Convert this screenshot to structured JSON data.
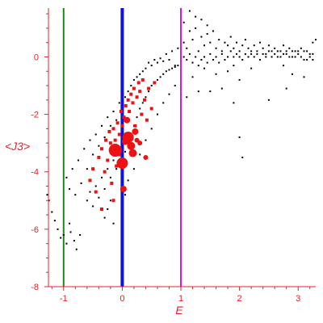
{
  "chart_data": {
    "type": "scatter",
    "title": "",
    "xlabel": "E",
    "ylabel": "<J3>",
    "xlim": [
      -1.3,
      3.3
    ],
    "ylim": [
      -8,
      1.7
    ],
    "xticks": [
      -1,
      0,
      1,
      2,
      3
    ],
    "yticks": [
      -8,
      -6,
      -4,
      -2,
      0
    ],
    "grid": false,
    "legend": "none",
    "axis_color": "#e8202a",
    "vertical_lines": [
      {
        "x": -1,
        "color": "#1a8a1a"
      },
      {
        "x": 0,
        "color": "#1010e0"
      },
      {
        "x": 1,
        "color": "#e010e0"
      }
    ],
    "series": [
      {
        "color": "#000000",
        "marker": "dot",
        "points": [
          [
            -1.28,
            -4.8
          ],
          [
            -1.25,
            -5.0
          ],
          [
            -1.2,
            -5.4
          ],
          [
            -1.15,
            -5.7
          ],
          [
            -1.1,
            -6.0
          ],
          [
            -1.05,
            -6.3
          ],
          [
            -1.0,
            -6.2
          ],
          [
            -0.95,
            -6.5
          ],
          [
            -0.9,
            -5.8
          ],
          [
            -0.88,
            -6.1
          ],
          [
            -0.82,
            -6.4
          ],
          [
            -0.78,
            -6.7
          ],
          [
            -0.72,
            -6.2
          ],
          [
            -0.95,
            -4.2
          ],
          [
            -0.9,
            -4.6
          ],
          [
            -0.85,
            -3.9
          ],
          [
            -0.8,
            -4.8
          ],
          [
            -0.75,
            -3.6
          ],
          [
            -0.7,
            -4.4
          ],
          [
            -0.65,
            -3.2
          ],
          [
            -0.6,
            -3.9
          ],
          [
            -0.55,
            -2.9
          ],
          [
            -0.5,
            -3.4
          ],
          [
            -0.45,
            -2.7
          ],
          [
            -0.4,
            -3.1
          ],
          [
            -0.35,
            -2.4
          ],
          [
            -0.3,
            -2.8
          ],
          [
            -0.25,
            -2.1
          ],
          [
            -0.2,
            -2.4
          ],
          [
            -0.15,
            -1.9
          ],
          [
            -0.1,
            -2.2
          ],
          [
            -0.05,
            -1.6
          ],
          [
            0.05,
            -1.4
          ],
          [
            0.1,
            -1.2
          ],
          [
            0.15,
            -1.0
          ],
          [
            0.2,
            -0.8
          ],
          [
            0.25,
            -0.7
          ],
          [
            0.3,
            -0.6
          ],
          [
            0.35,
            -0.5
          ],
          [
            0.4,
            -0.4
          ],
          [
            0.45,
            -0.2
          ],
          [
            0.5,
            -0.3
          ],
          [
            0.55,
            -0.1
          ],
          [
            0.6,
            -0.2
          ],
          [
            0.65,
            -0.05
          ],
          [
            0.7,
            -0.15
          ],
          [
            0.75,
            0.1
          ],
          [
            0.8,
            -0.1
          ],
          [
            0.85,
            0.2
          ],
          [
            0.9,
            -0.3
          ],
          [
            0.95,
            0.3
          ],
          [
            -0.6,
            -5.0
          ],
          [
            -0.55,
            -4.7
          ],
          [
            -0.5,
            -5.2
          ],
          [
            -0.45,
            -4.5
          ],
          [
            -0.4,
            -4.9
          ],
          [
            -0.35,
            -4.2
          ],
          [
            -0.3,
            -4.6
          ],
          [
            -0.25,
            -3.9
          ],
          [
            -0.2,
            -4.2
          ],
          [
            -0.15,
            -3.6
          ],
          [
            -0.1,
            -3.9
          ],
          [
            0.05,
            -3.3
          ],
          [
            0.1,
            -3.0
          ],
          [
            0.15,
            -2.7
          ],
          [
            0.2,
            -2.4
          ],
          [
            0.25,
            -2.1
          ],
          [
            0.3,
            -1.8
          ],
          [
            0.35,
            -1.6
          ],
          [
            0.4,
            -1.4
          ],
          [
            0.45,
            -1.2
          ],
          [
            0.5,
            -1.0
          ],
          [
            0.55,
            -0.9
          ],
          [
            0.6,
            -0.8
          ],
          [
            0.65,
            -0.7
          ],
          [
            0.7,
            -0.6
          ],
          [
            0.75,
            -0.5
          ],
          [
            0.8,
            -0.45
          ],
          [
            0.85,
            -0.4
          ],
          [
            0.9,
            -0.35
          ],
          [
            0.95,
            -0.3
          ],
          [
            -0.3,
            -5.6
          ],
          [
            -0.25,
            -5.3
          ],
          [
            -0.2,
            -5.0
          ],
          [
            -0.15,
            -5.8
          ],
          [
            0.05,
            -4.8
          ],
          [
            0.1,
            -4.3
          ],
          [
            0.2,
            -3.9
          ],
          [
            0.3,
            -3.4
          ],
          [
            0.4,
            -2.9
          ],
          [
            0.5,
            -2.5
          ],
          [
            0.6,
            -2.0
          ],
          [
            0.7,
            -1.6
          ],
          [
            0.8,
            -1.3
          ],
          [
            0.9,
            -1.0
          ],
          [
            1.05,
            0.5
          ],
          [
            1.1,
            0.3
          ],
          [
            1.15,
            0.9
          ],
          [
            1.2,
            0.6
          ],
          [
            1.25,
            1.0
          ],
          [
            1.3,
            0.2
          ],
          [
            1.35,
            0.7
          ],
          [
            1.4,
            0.4
          ],
          [
            1.45,
            0.8
          ],
          [
            1.5,
            0.5
          ],
          [
            1.55,
            0.9
          ],
          [
            1.6,
            0.3
          ],
          [
            1.65,
            0.6
          ],
          [
            1.7,
            0.2
          ],
          [
            1.75,
            0.5
          ],
          [
            1.8,
            0.4
          ],
          [
            1.85,
            0.7
          ],
          [
            1.9,
            0.3
          ],
          [
            1.95,
            0.5
          ],
          [
            2.0,
            0.2
          ],
          [
            2.05,
            0.4
          ],
          [
            2.1,
            0.6
          ],
          [
            2.15,
            0.3
          ],
          [
            2.2,
            0.1
          ],
          [
            2.25,
            0.4
          ],
          [
            2.3,
            0.2
          ],
          [
            2.35,
            0.5
          ],
          [
            2.4,
            0.3
          ],
          [
            2.45,
            0.1
          ],
          [
            2.5,
            0.4
          ],
          [
            2.55,
            0.2
          ],
          [
            2.6,
            0.3
          ],
          [
            2.65,
            0.0
          ],
          [
            2.7,
            0.2
          ],
          [
            2.75,
            0.4
          ],
          [
            2.8,
            0.1
          ],
          [
            2.85,
            0.3
          ],
          [
            2.9,
            0.0
          ],
          [
            2.95,
            0.2
          ],
          [
            3.0,
            0.1
          ],
          [
            3.05,
            0.3
          ],
          [
            3.1,
            -0.1
          ],
          [
            3.15,
            0.2
          ],
          [
            3.2,
            0.0
          ],
          [
            3.25,
            0.1
          ],
          [
            1.05,
            0.0
          ],
          [
            1.1,
            -0.1
          ],
          [
            1.15,
            0.1
          ],
          [
            1.2,
            -0.2
          ],
          [
            1.25,
            0.0
          ],
          [
            1.3,
            -0.3
          ],
          [
            1.35,
            -0.1
          ],
          [
            1.4,
            0.0
          ],
          [
            1.45,
            -0.2
          ],
          [
            1.5,
            0.1
          ],
          [
            1.55,
            -0.1
          ],
          [
            1.6,
            0.0
          ],
          [
            1.65,
            -0.2
          ],
          [
            1.7,
            0.1
          ],
          [
            1.75,
            -0.1
          ],
          [
            1.8,
            0.0
          ],
          [
            1.85,
            0.2
          ],
          [
            1.9,
            0.0
          ],
          [
            1.95,
            0.1
          ],
          [
            2.0,
            0.0
          ],
          [
            2.05,
            -0.1
          ],
          [
            2.1,
            0.1
          ],
          [
            2.15,
            0.0
          ],
          [
            2.2,
            0.2
          ],
          [
            2.25,
            0.0
          ],
          [
            2.3,
            0.1
          ],
          [
            2.35,
            -0.1
          ],
          [
            2.4,
            0.1
          ],
          [
            2.45,
            0.0
          ],
          [
            2.5,
            0.2
          ],
          [
            2.55,
            0.0
          ],
          [
            2.6,
            0.1
          ],
          [
            2.65,
            0.2
          ],
          [
            2.7,
            0.0
          ],
          [
            2.75,
            0.1
          ],
          [
            2.8,
            0.2
          ],
          [
            2.85,
            0.0
          ],
          [
            2.9,
            0.2
          ],
          [
            2.95,
            0.0
          ],
          [
            3.0,
            0.2
          ],
          [
            3.05,
            0.0
          ],
          [
            3.1,
            0.2
          ],
          [
            3.15,
            -0.1
          ],
          [
            3.2,
            0.1
          ],
          [
            3.25,
            -0.1
          ],
          [
            1.1,
            -1.4
          ],
          [
            1.2,
            -0.7
          ],
          [
            1.3,
            -1.2
          ],
          [
            1.4,
            -0.4
          ],
          [
            1.5,
            -1.2
          ],
          [
            1.6,
            -0.6
          ],
          [
            1.7,
            -1.1
          ],
          [
            1.8,
            -0.5
          ],
          [
            1.9,
            -1.6
          ],
          [
            1.9,
            -0.3
          ],
          [
            2.0,
            -0.8
          ],
          [
            2.05,
            -3.5
          ],
          [
            2.2,
            -0.4
          ],
          [
            2.5,
            -1.5
          ],
          [
            2.8,
            -1.1
          ],
          [
            2.75,
            -0.3
          ],
          [
            2.9,
            -0.6
          ],
          [
            3.1,
            -0.7
          ],
          [
            2.0,
            -2.8
          ],
          [
            1.15,
            1.6
          ],
          [
            1.25,
            1.4
          ],
          [
            1.35,
            1.3
          ],
          [
            1.05,
            1.2
          ],
          [
            1.45,
            1.1
          ],
          [
            3.25,
            0.5
          ],
          [
            3.3,
            0.6
          ]
        ]
      },
      {
        "color": "#ee1111",
        "marker": "circle",
        "points": [
          [
            -0.12,
            -3.25,
            8
          ],
          [
            0.1,
            -2.8,
            7
          ],
          [
            0.0,
            -3.7,
            7
          ],
          [
            0.15,
            -3.1,
            5
          ],
          [
            0.22,
            -2.6,
            4
          ],
          [
            0.05,
            -2.95,
            4
          ],
          [
            0.18,
            -3.35,
            5
          ],
          [
            0.08,
            -2.2,
            4
          ],
          [
            0.3,
            -3.0,
            3
          ],
          [
            0.25,
            -2.9,
            3
          ],
          [
            0.02,
            -4.6,
            4
          ],
          [
            0.4,
            -3.5,
            3
          ]
        ]
      },
      {
        "color": "#ee1111",
        "marker": "square",
        "points": [
          [
            -0.55,
            -4.3
          ],
          [
            -0.5,
            -3.9
          ],
          [
            -0.45,
            -4.7
          ],
          [
            -0.4,
            -3.5
          ],
          [
            -0.35,
            -3.2
          ],
          [
            -0.3,
            -4.0
          ],
          [
            -0.28,
            -2.9
          ],
          [
            -0.25,
            -3.6
          ],
          [
            -0.22,
            -2.6
          ],
          [
            -0.2,
            -3.0
          ],
          [
            -0.18,
            -4.4
          ],
          [
            -0.15,
            -2.5
          ],
          [
            -0.12,
            -2.9
          ],
          [
            -0.1,
            -3.8
          ],
          [
            -0.08,
            -2.3
          ],
          [
            -0.05,
            -2.7
          ],
          [
            -0.02,
            -1.9
          ],
          [
            0.03,
            -2.1
          ],
          [
            0.06,
            -1.7
          ],
          [
            0.1,
            -1.5
          ],
          [
            0.12,
            -1.9
          ],
          [
            0.15,
            -1.3
          ],
          [
            0.18,
            -1.6
          ],
          [
            0.2,
            -1.1
          ],
          [
            0.22,
            -2.4
          ],
          [
            0.25,
            -1.4
          ],
          [
            0.28,
            -0.9
          ],
          [
            0.3,
            -1.2
          ],
          [
            0.33,
            -2.0
          ],
          [
            0.35,
            -0.8
          ],
          [
            0.38,
            -1.5
          ],
          [
            0.42,
            -2.2
          ],
          [
            0.45,
            -1.1
          ],
          [
            0.5,
            -1.8
          ],
          [
            0.55,
            -0.9
          ],
          [
            -0.35,
            -5.3
          ],
          [
            -0.15,
            -5.0
          ],
          [
            0.0,
            -2.4
          ],
          [
            -0.05,
            -3.4
          ]
        ]
      }
    ]
  }
}
